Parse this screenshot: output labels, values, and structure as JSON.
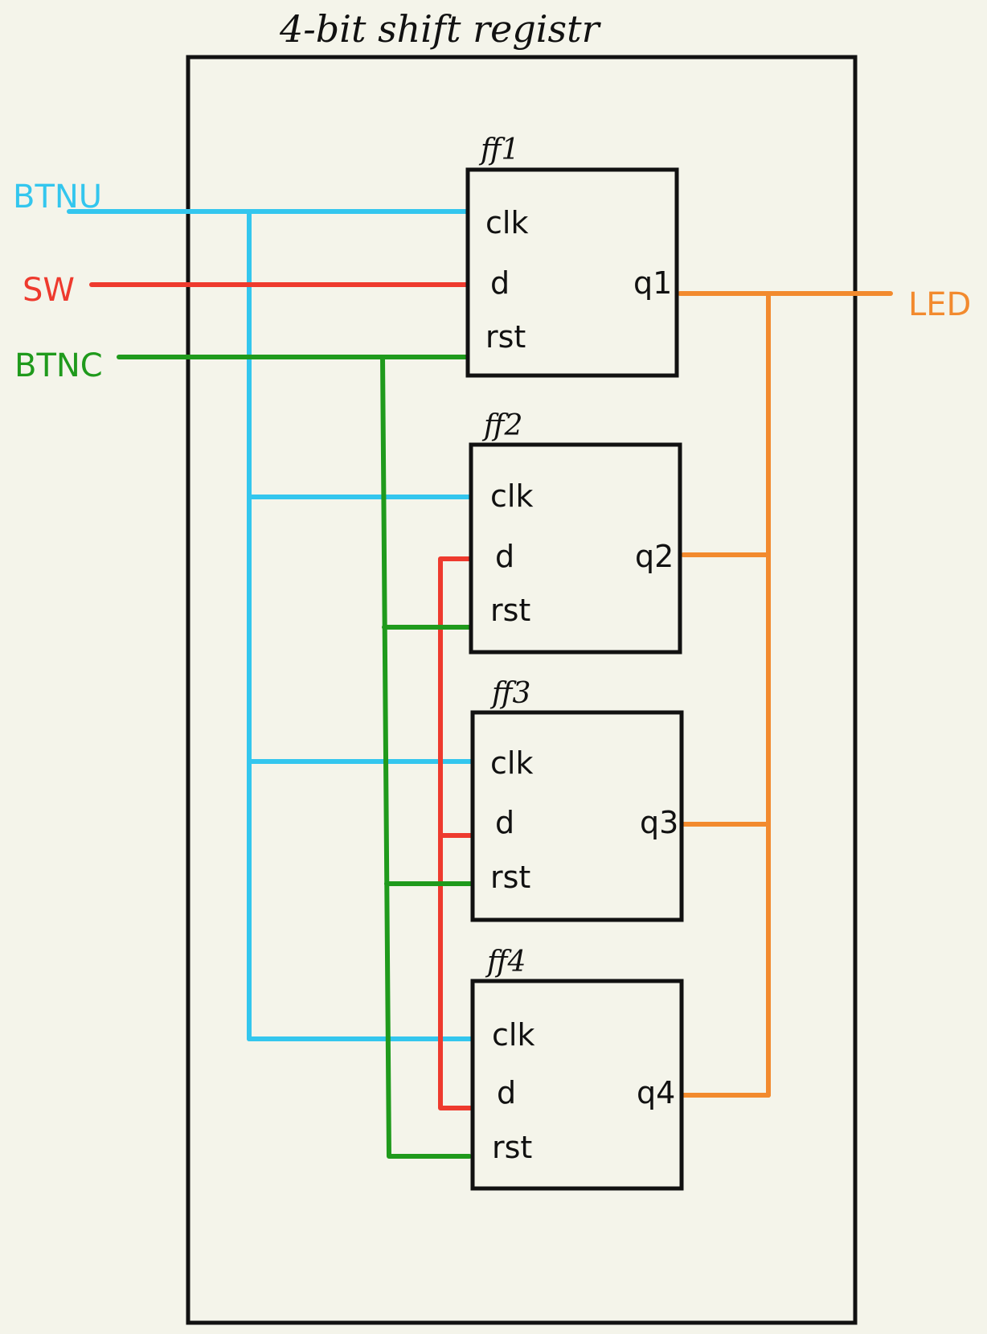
{
  "title": "4-bit shift registr",
  "colors": {
    "background": "#f4f4ea",
    "outline": "#111111",
    "clock": "#33c6ee",
    "data": "#ee3a2e",
    "reset": "#1f9a1c",
    "output": "#f28a2e"
  },
  "inputs": {
    "clock": "BTNU",
    "data": "SW",
    "reset": "BTNC"
  },
  "output": {
    "label": "LED"
  },
  "flipflops": [
    {
      "name": "ff1",
      "ports": {
        "clk": "clk",
        "d": "d",
        "rst": "rst"
      },
      "q": "q1"
    },
    {
      "name": "ff2",
      "ports": {
        "clk": "clk",
        "d": "d",
        "rst": "rst"
      },
      "q": "q2"
    },
    {
      "name": "ff3",
      "ports": {
        "clk": "clk",
        "d": "d",
        "rst": "rst"
      },
      "q": "q3"
    },
    {
      "name": "ff4",
      "ports": {
        "clk": "clk",
        "d": "d",
        "rst": "rst"
      },
      "q": "q4"
    }
  ]
}
